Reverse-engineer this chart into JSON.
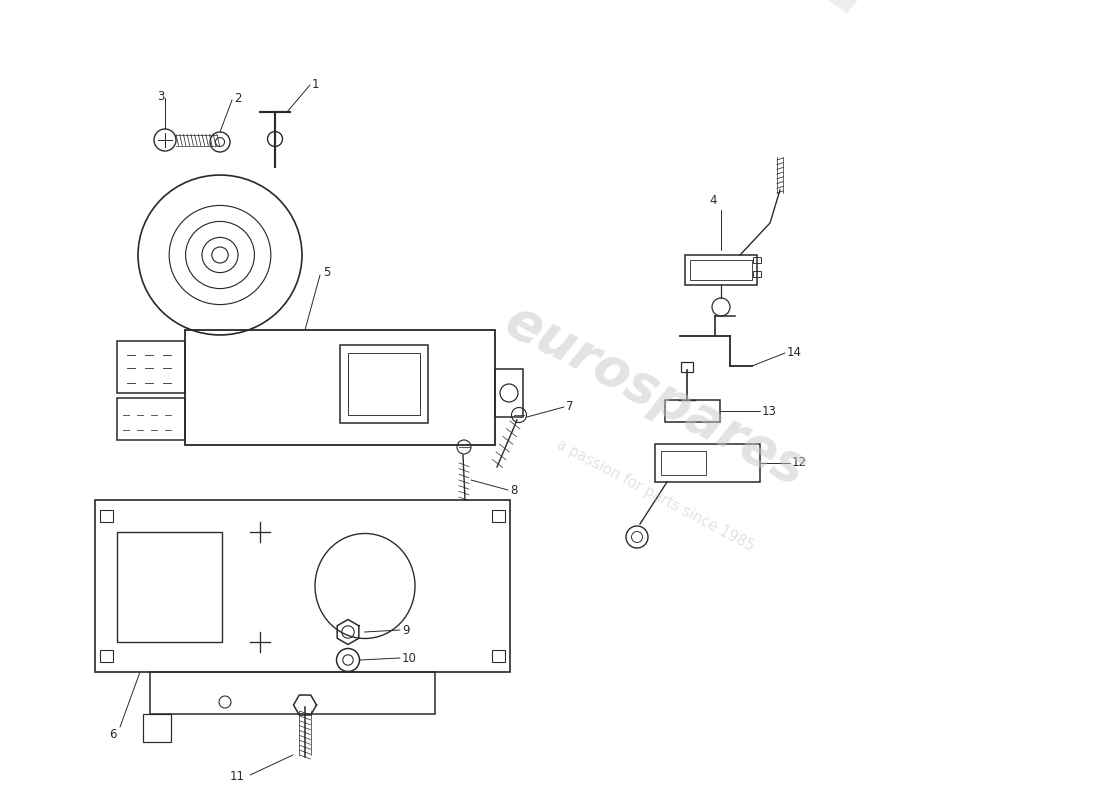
{
  "background_color": "#ffffff",
  "line_color": "#2a2a2a",
  "watermark1": "eurospares",
  "watermark2": "a passion for parts since 1985",
  "wm_color": "#c8c8c8",
  "wm_alpha": 0.5,
  "label_fontsize": 8.5,
  "fig_width": 11.0,
  "fig_height": 8.0,
  "dpi": 100,
  "xlim": [
    0,
    11
  ],
  "ylim": [
    0,
    8
  ],
  "parts": [
    "1",
    "2",
    "3",
    "4",
    "5",
    "6",
    "7",
    "8",
    "9",
    "10",
    "11",
    "12",
    "13",
    "14"
  ]
}
